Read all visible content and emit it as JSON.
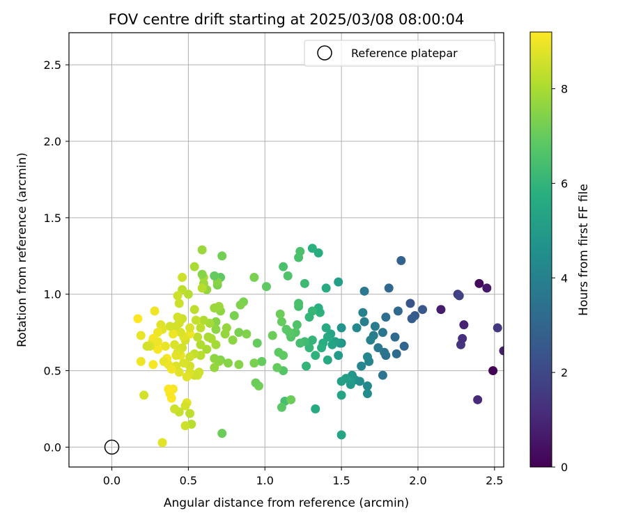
{
  "chart_data": {
    "type": "scatter",
    "title": "FOV centre drift starting at 2025/03/08 08:00:04",
    "xlabel": "Angular distance from reference (arcmin)",
    "ylabel": "Rotation from reference (arcmin)",
    "xlim": [
      -0.28,
      2.56
    ],
    "ylim": [
      -0.13,
      2.71
    ],
    "xticks": [
      "0.0",
      "0.5",
      "1.0",
      "1.5",
      "2.0",
      "2.5"
    ],
    "yticks": [
      "0.0",
      "0.5",
      "1.0",
      "1.5",
      "2.0",
      "2.5"
    ],
    "grid": true,
    "legend": {
      "position": "top-right",
      "entries": [
        "Reference platepar"
      ]
    },
    "colorbar": {
      "label": "Hours from first FF file",
      "colormap": "viridis",
      "range": [
        0,
        9.2
      ],
      "ticks": [
        "0",
        "2",
        "4",
        "6",
        "8"
      ]
    },
    "reference_point": {
      "x": 0.0,
      "y": 0.0,
      "label": "Reference platepar"
    },
    "series": [
      {
        "points": [
          [
            2.4,
            1.07,
            0.2
          ],
          [
            2.45,
            1.04,
            0.6
          ],
          [
            2.49,
            0.5,
            0.1
          ],
          [
            2.39,
            0.31,
            1.1
          ],
          [
            2.52,
            0.78,
            1.5
          ],
          [
            2.56,
            0.63,
            0.8
          ],
          [
            2.28,
            0.67,
            1.4
          ],
          [
            2.29,
            0.71,
            1.2
          ],
          [
            2.3,
            0.8,
            0.9
          ],
          [
            2.26,
            1.0,
            1.6
          ],
          [
            2.27,
            0.99,
            1.8
          ],
          [
            2.15,
            0.9,
            0.7
          ],
          [
            2.03,
            0.9,
            2.5
          ],
          [
            1.98,
            0.86,
            2.6
          ],
          [
            1.96,
            0.84,
            2.7
          ],
          [
            1.95,
            0.94,
            2.4
          ],
          [
            1.89,
            1.22,
            2.9
          ],
          [
            1.91,
            0.66,
            3.0
          ],
          [
            1.87,
            0.89,
            3.1
          ],
          [
            1.86,
            0.61,
            3.2
          ],
          [
            1.85,
            0.72,
            3.2
          ],
          [
            1.81,
            1.04,
            3.1
          ],
          [
            1.79,
            0.85,
            3.3
          ],
          [
            1.79,
            0.6,
            3.4
          ],
          [
            1.78,
            0.62,
            3.5
          ],
          [
            1.77,
            0.47,
            3.6
          ],
          [
            1.77,
            0.75,
            3.6
          ],
          [
            1.74,
            0.65,
            3.7
          ],
          [
            1.72,
            0.79,
            3.8
          ],
          [
            1.71,
            0.73,
            3.9
          ],
          [
            1.69,
            0.7,
            4.0
          ],
          [
            1.68,
            0.56,
            4.1
          ],
          [
            1.67,
            0.59,
            4.2
          ],
          [
            1.67,
            0.4,
            4.3
          ],
          [
            1.67,
            0.35,
            4.4
          ],
          [
            1.65,
            1.02,
            3.7
          ],
          [
            1.65,
            0.82,
            3.9
          ],
          [
            1.64,
            0.88,
            4.0
          ],
          [
            1.63,
            0.53,
            4.2
          ],
          [
            1.62,
            0.43,
            4.4
          ],
          [
            1.6,
            0.78,
            4.3
          ],
          [
            1.59,
            0.44,
            4.6
          ],
          [
            1.57,
            0.47,
            4.8
          ],
          [
            1.56,
            0.41,
            4.9
          ],
          [
            1.56,
            0.43,
            5.0
          ],
          [
            1.53,
            0.45,
            5.1
          ],
          [
            1.5,
            0.43,
            5.2
          ],
          [
            1.5,
            0.34,
            5.3
          ],
          [
            1.5,
            0.08,
            5.4
          ],
          [
            1.5,
            0.68,
            4.5
          ],
          [
            1.5,
            0.78,
            4.7
          ],
          [
            1.49,
            0.68,
            4.9
          ],
          [
            1.48,
            0.6,
            5.0
          ],
          [
            1.48,
            1.08,
            5.1
          ],
          [
            1.46,
            0.69,
            5.2
          ],
          [
            1.44,
            0.67,
            5.3
          ],
          [
            1.43,
            0.74,
            5.4
          ],
          [
            1.41,
            0.72,
            5.5
          ],
          [
            1.41,
            0.57,
            5.5
          ],
          [
            1.4,
            0.78,
            5.6
          ],
          [
            1.4,
            1.04,
            5.6
          ],
          [
            1.38,
            0.68,
            5.7
          ],
          [
            1.37,
            0.65,
            5.8
          ],
          [
            1.36,
            0.88,
            5.9
          ],
          [
            1.35,
            1.27,
            5.7
          ],
          [
            1.35,
            0.91,
            5.8
          ],
          [
            1.33,
            0.6,
            5.9
          ],
          [
            1.33,
            0.25,
            5.6
          ],
          [
            1.31,
            1.3,
            5.8
          ],
          [
            1.31,
            0.7,
            6.0
          ],
          [
            1.31,
            0.89,
            6.1
          ],
          [
            1.29,
            0.85,
            6.0
          ],
          [
            1.29,
            0.65,
            6.1
          ],
          [
            1.27,
            0.53,
            6.0
          ],
          [
            1.26,
            1.07,
            6.2
          ],
          [
            1.26,
            0.69,
            6.3
          ],
          [
            1.23,
            0.68,
            6.4
          ],
          [
            1.23,
            1.28,
            6.5
          ],
          [
            1.22,
            1.24,
            6.5
          ],
          [
            1.22,
            0.92,
            6.4
          ],
          [
            1.22,
            0.94,
            6.5
          ],
          [
            1.21,
            0.8,
            6.6
          ],
          [
            1.2,
            0.75,
            6.7
          ],
          [
            1.17,
            0.72,
            6.7
          ],
          [
            1.16,
            0.75,
            6.8
          ],
          [
            1.15,
            1.12,
            6.6
          ],
          [
            1.14,
            0.77,
            6.8
          ],
          [
            1.13,
            0.3,
            6.4
          ],
          [
            1.12,
            0.5,
            6.7
          ],
          [
            1.12,
            1.18,
            6.5
          ],
          [
            1.12,
            0.6,
            6.9
          ],
          [
            1.11,
            0.26,
            6.8
          ],
          [
            1.11,
            0.82,
            7.0
          ],
          [
            1.1,
            0.87,
            7.1
          ],
          [
            1.09,
            0.62,
            6.9
          ],
          [
            1.08,
            0.52,
            7.0
          ],
          [
            1.05,
            0.73,
            7.1
          ],
          [
            1.01,
            1.05,
            6.9
          ],
          [
            0.98,
            0.56,
            7.0
          ],
          [
            0.96,
            0.4,
            7.2
          ],
          [
            0.95,
            0.68,
            7.0
          ],
          [
            0.94,
            0.42,
            7.1
          ],
          [
            0.93,
            1.11,
            7.3
          ],
          [
            0.93,
            0.55,
            7.3
          ],
          [
            1.17,
            0.31,
            7.1
          ],
          [
            0.88,
            0.74,
            7.4
          ],
          [
            0.86,
            0.95,
            7.3
          ],
          [
            0.84,
            0.93,
            7.4
          ],
          [
            0.83,
            0.54,
            7.5
          ],
          [
            0.83,
            0.75,
            7.3
          ],
          [
            0.8,
            0.86,
            7.3
          ],
          [
            0.79,
            0.7,
            7.6
          ],
          [
            0.76,
            0.55,
            7.5
          ],
          [
            0.75,
            0.78,
            7.7
          ],
          [
            0.74,
            0.74,
            7.7
          ],
          [
            0.72,
            1.25,
            7.2
          ],
          [
            0.72,
            0.09,
            7.1
          ],
          [
            0.71,
            0.57,
            7.4
          ],
          [
            0.71,
            0.89,
            7.6
          ],
          [
            0.71,
            1.11,
            6.9
          ],
          [
            0.7,
            0.92,
            7.8
          ],
          [
            0.7,
            0.56,
            7.6
          ],
          [
            0.69,
            1.06,
            7.3
          ],
          [
            0.69,
            1.08,
            7.5
          ],
          [
            0.68,
            0.82,
            7.5
          ],
          [
            0.68,
            0.77,
            7.6
          ],
          [
            0.68,
            0.67,
            7.9
          ],
          [
            0.67,
            1.12,
            7.0
          ],
          [
            0.67,
            0.58,
            7.6
          ],
          [
            0.67,
            0.52,
            7.7
          ],
          [
            0.67,
            0.91,
            7.8
          ],
          [
            0.65,
            0.71,
            8.0
          ],
          [
            0.64,
            0.81,
            7.9
          ],
          [
            0.63,
            0.72,
            8.0
          ],
          [
            0.62,
            1.03,
            7.7
          ],
          [
            0.62,
            0.64,
            8.0
          ],
          [
            0.6,
            0.83,
            8.1
          ],
          [
            0.6,
            1.07,
            7.8
          ],
          [
            0.6,
            1.11,
            7.9
          ],
          [
            0.59,
            1.13,
            7.5
          ],
          [
            0.59,
            1.29,
            7.8
          ],
          [
            0.59,
            1.04,
            8.2
          ],
          [
            0.58,
            0.67,
            8.1
          ],
          [
            0.58,
            0.78,
            8.3
          ],
          [
            0.58,
            0.6,
            8.2
          ],
          [
            0.57,
            0.49,
            8.5
          ],
          [
            0.56,
            0.72,
            8.3
          ],
          [
            0.56,
            0.47,
            8.6
          ],
          [
            0.55,
            0.83,
            8.4
          ],
          [
            0.54,
            0.61,
            8.4
          ],
          [
            0.54,
            0.47,
            8.5
          ],
          [
            0.54,
            0.9,
            8.3
          ],
          [
            0.54,
            1.18,
            8.0
          ],
          [
            0.52,
            0.15,
            8.2
          ],
          [
            0.51,
            0.59,
            8.5
          ],
          [
            0.51,
            0.53,
            8.6
          ],
          [
            0.51,
            0.49,
            8.7
          ],
          [
            0.51,
            0.74,
            9.0
          ],
          [
            0.51,
            0.78,
            8.7
          ],
          [
            0.51,
            0.22,
            8.3
          ],
          [
            0.5,
            1.0,
            8.2
          ],
          [
            0.49,
            0.46,
            8.8
          ],
          [
            0.49,
            0.29,
            8.8
          ],
          [
            0.48,
            0.7,
            8.6
          ],
          [
            0.48,
            0.27,
            8.6
          ],
          [
            0.48,
            0.14,
            8.5
          ],
          [
            0.47,
            0.72,
            8.8
          ],
          [
            0.47,
            0.55,
            8.7
          ],
          [
            0.46,
            0.65,
            8.6
          ],
          [
            0.46,
            0.84,
            8.5
          ],
          [
            0.46,
            1.03,
            8.3
          ],
          [
            0.46,
            1.11,
            8.5
          ],
          [
            0.45,
            0.6,
            8.9
          ],
          [
            0.45,
            0.75,
            8.7
          ],
          [
            0.44,
            0.94,
            8.5
          ],
          [
            0.44,
            0.81,
            8.6
          ],
          [
            0.44,
            0.23,
            8.4
          ],
          [
            0.44,
            0.49,
            8.8
          ],
          [
            0.43,
            0.85,
            8.6
          ],
          [
            0.43,
            0.62,
            8.7
          ],
          [
            0.43,
            0.99,
            8.5
          ],
          [
            0.42,
            0.79,
            8.6
          ],
          [
            0.42,
            0.53,
            8.7
          ],
          [
            0.42,
            0.6,
            8.8
          ],
          [
            0.41,
            0.67,
            8.7
          ],
          [
            0.41,
            0.25,
            8.5
          ],
          [
            0.4,
            0.74,
            9.0
          ],
          [
            0.4,
            0.38,
            9.1
          ],
          [
            0.39,
            0.32,
            9.2
          ],
          [
            0.39,
            0.51,
            9.0
          ],
          [
            0.38,
            0.35,
            9.1
          ],
          [
            0.38,
            0.79,
            8.6
          ],
          [
            0.37,
            0.38,
            9.2
          ],
          [
            0.37,
            0.54,
            9.0
          ],
          [
            0.36,
            0.58,
            9.1
          ],
          [
            0.35,
            0.66,
            8.9
          ],
          [
            0.34,
            0.56,
            8.9
          ],
          [
            0.33,
            0.77,
            8.8
          ],
          [
            0.33,
            0.03,
            8.8
          ],
          [
            0.32,
            0.8,
            8.8
          ],
          [
            0.3,
            0.64,
            9.1
          ],
          [
            0.3,
            0.75,
            9.0
          ],
          [
            0.28,
            0.89,
            9.0
          ],
          [
            0.27,
            0.71,
            9.1
          ],
          [
            0.26,
            0.68,
            9.0
          ],
          [
            0.25,
            0.66,
            8.7
          ],
          [
            0.23,
            0.66,
            8.6
          ],
          [
            0.21,
            0.34,
            8.6
          ],
          [
            0.19,
            0.73,
            8.9
          ],
          [
            0.19,
            0.56,
            9.0
          ],
          [
            0.17,
            0.84,
            9.2
          ],
          [
            0.27,
            0.54,
            9.1
          ],
          [
            0.3,
            0.69,
            9.0
          ]
        ]
      }
    ]
  }
}
